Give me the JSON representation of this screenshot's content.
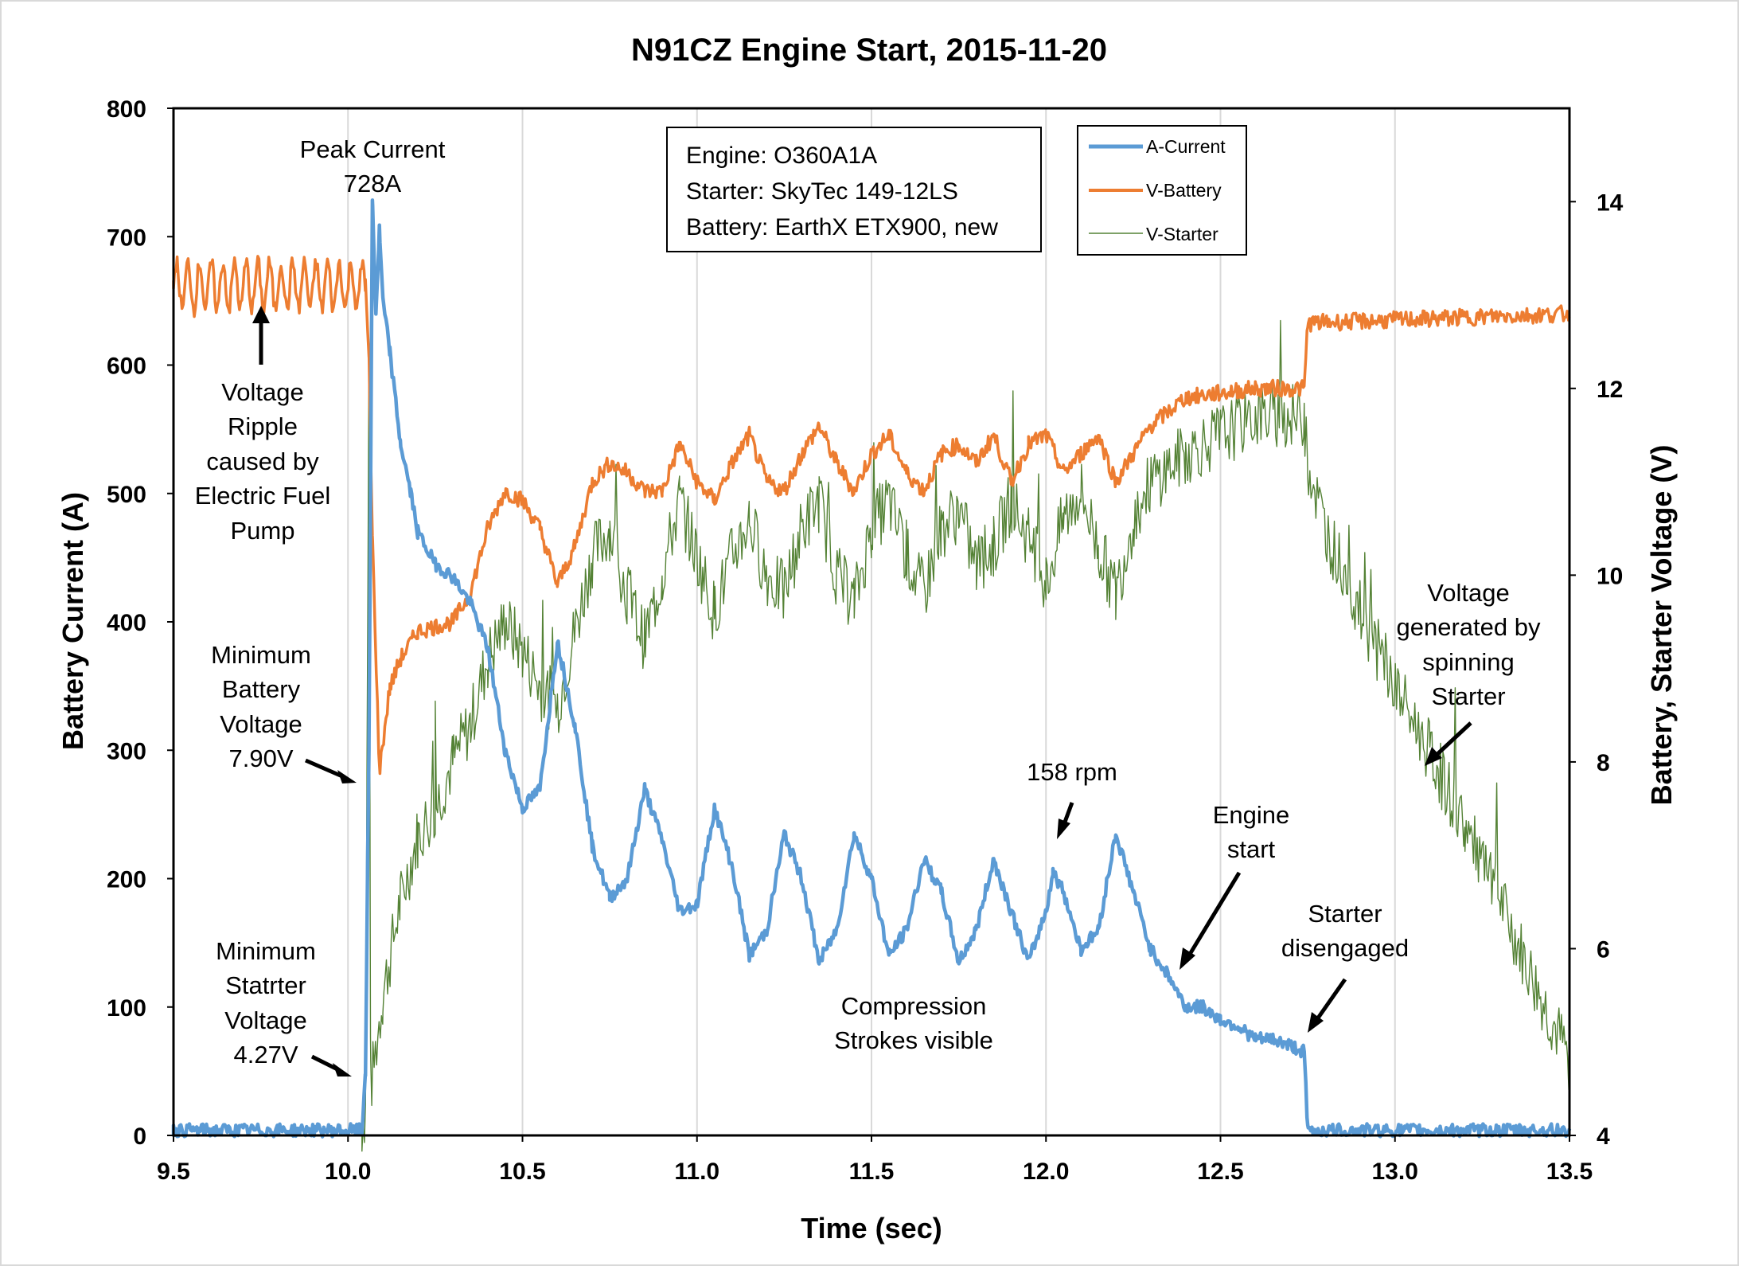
{
  "chart_data": {
    "type": "line",
    "title": "N91CZ Engine Start, 2015-11-20",
    "xlabel": "Time (sec)",
    "ylabel_left": "Battery Current (A)",
    "ylabel_right": "Battery, Starter Voltage (V)",
    "xlim": [
      9.5,
      13.5
    ],
    "ylim_left": [
      0,
      800
    ],
    "ylim_right": [
      4,
      15
    ],
    "grid": "vertical",
    "x_ticks": [
      "9.5",
      "10.0",
      "10.5",
      "11.0",
      "11.5",
      "12.0",
      "12.5",
      "13.0",
      "13.5"
    ],
    "y_left_ticks": [
      "0",
      "100",
      "200",
      "300",
      "400",
      "500",
      "600",
      "700",
      "800"
    ],
    "y_right_ticks": [
      "4",
      "6",
      "8",
      "10",
      "12",
      "14"
    ],
    "legend": {
      "position": "top-right",
      "entries": [
        "A-Current",
        "V-Battery",
        "V-Starter"
      ]
    },
    "info_box": [
      "Engine: O360A1A",
      "Starter: SkyTec 149-12LS",
      "Battery: EarthX ETX900, new"
    ],
    "annotations": {
      "peak": [
        "Peak Current",
        "728A"
      ],
      "ripple": [
        "Voltage",
        "Ripple",
        "caused by",
        "Electric Fuel",
        "Pump"
      ],
      "minbatt": [
        "Minimum",
        "Battery",
        "Voltage",
        "7.90V"
      ],
      "minstarter": [
        "Minimum",
        "Statrter",
        "Voltage",
        "4.27V"
      ],
      "rpm": [
        "158 rpm"
      ],
      "engine": [
        "Engine",
        "start"
      ],
      "compression": [
        "Compression",
        "Strokes visible"
      ],
      "disengaged": [
        "Starter",
        "disengaged"
      ],
      "generated": [
        "Voltage",
        "generated by",
        "spinning",
        "Starter"
      ]
    },
    "series": [
      {
        "name": "A-Current",
        "axis": "left",
        "color": "#5B9BD5",
        "points": [
          [
            9.5,
            4
          ],
          [
            10.04,
            4
          ],
          [
            10.05,
            50
          ],
          [
            10.06,
            300
          ],
          [
            10.07,
            728
          ],
          [
            10.08,
            640
          ],
          [
            10.09,
            705
          ],
          [
            10.1,
            650
          ],
          [
            10.12,
            610
          ],
          [
            10.15,
            540
          ],
          [
            10.18,
            500
          ],
          [
            10.2,
            470
          ],
          [
            10.25,
            445
          ],
          [
            10.3,
            435
          ],
          [
            10.35,
            415
          ],
          [
            10.4,
            380
          ],
          [
            10.45,
            300
          ],
          [
            10.5,
            255
          ],
          [
            10.55,
            270
          ],
          [
            10.6,
            385
          ],
          [
            10.65,
            320
          ],
          [
            10.7,
            225
          ],
          [
            10.75,
            185
          ],
          [
            10.8,
            200
          ],
          [
            10.85,
            270
          ],
          [
            10.9,
            230
          ],
          [
            10.95,
            175
          ],
          [
            11.0,
            180
          ],
          [
            11.05,
            255
          ],
          [
            11.1,
            210
          ],
          [
            11.15,
            140
          ],
          [
            11.2,
            160
          ],
          [
            11.25,
            235
          ],
          [
            11.3,
            200
          ],
          [
            11.35,
            135
          ],
          [
            11.4,
            160
          ],
          [
            11.45,
            235
          ],
          [
            11.5,
            200
          ],
          [
            11.55,
            140
          ],
          [
            11.6,
            160
          ],
          [
            11.65,
            215
          ],
          [
            11.7,
            190
          ],
          [
            11.75,
            135
          ],
          [
            11.8,
            160
          ],
          [
            11.85,
            215
          ],
          [
            11.9,
            175
          ],
          [
            11.95,
            135
          ],
          [
            12.0,
            175
          ],
          [
            12.02,
            205
          ],
          [
            12.05,
            190
          ],
          [
            12.1,
            145
          ],
          [
            12.15,
            160
          ],
          [
            12.2,
            235
          ],
          [
            12.25,
            190
          ],
          [
            12.3,
            145
          ],
          [
            12.35,
            125
          ],
          [
            12.4,
            100
          ],
          [
            12.45,
            100
          ],
          [
            12.5,
            90
          ],
          [
            12.55,
            85
          ],
          [
            12.6,
            75
          ],
          [
            12.65,
            75
          ],
          [
            12.7,
            70
          ],
          [
            12.74,
            65
          ],
          [
            12.75,
            4
          ],
          [
            13.5,
            4
          ]
        ]
      },
      {
        "name": "V-Battery",
        "axis": "right",
        "color": "#ED7D31",
        "points": [
          [
            9.5,
            13.1
          ],
          [
            10.05,
            13.1
          ],
          [
            10.06,
            12.3
          ],
          [
            10.07,
            10.4
          ],
          [
            10.09,
            7.9
          ],
          [
            10.12,
            8.8
          ],
          [
            10.15,
            9.1
          ],
          [
            10.2,
            9.4
          ],
          [
            10.3,
            9.5
          ],
          [
            10.35,
            9.8
          ],
          [
            10.4,
            10.5
          ],
          [
            10.45,
            10.9
          ],
          [
            10.5,
            10.8
          ],
          [
            10.55,
            10.5
          ],
          [
            10.6,
            9.9
          ],
          [
            10.65,
            10.3
          ],
          [
            10.7,
            11.0
          ],
          [
            10.75,
            11.2
          ],
          [
            10.8,
            11.1
          ],
          [
            10.85,
            10.9
          ],
          [
            10.9,
            10.9
          ],
          [
            10.95,
            11.4
          ],
          [
            11.0,
            11.0
          ],
          [
            11.05,
            10.8
          ],
          [
            11.1,
            11.2
          ],
          [
            11.15,
            11.5
          ],
          [
            11.2,
            11.0
          ],
          [
            11.25,
            10.9
          ],
          [
            11.3,
            11.3
          ],
          [
            11.35,
            11.6
          ],
          [
            11.4,
            11.2
          ],
          [
            11.45,
            10.9
          ],
          [
            11.5,
            11.3
          ],
          [
            11.55,
            11.5
          ],
          [
            11.6,
            11.1
          ],
          [
            11.65,
            10.9
          ],
          [
            11.7,
            11.3
          ],
          [
            11.75,
            11.4
          ],
          [
            11.8,
            11.2
          ],
          [
            11.85,
            11.5
          ],
          [
            11.9,
            11.0
          ],
          [
            11.95,
            11.4
          ],
          [
            12.0,
            11.5
          ],
          [
            12.05,
            11.1
          ],
          [
            12.1,
            11.3
          ],
          [
            12.15,
            11.5
          ],
          [
            12.2,
            11.0
          ],
          [
            12.25,
            11.3
          ],
          [
            12.3,
            11.6
          ],
          [
            12.4,
            11.9
          ],
          [
            12.5,
            11.95
          ],
          [
            12.6,
            12.0
          ],
          [
            12.74,
            12.0
          ],
          [
            12.75,
            12.7
          ],
          [
            13.5,
            12.8
          ]
        ]
      },
      {
        "name": "V-Starter",
        "axis": "right",
        "color": "#548235",
        "points": [
          [
            10.04,
            4.1
          ],
          [
            10.05,
            4.27
          ],
          [
            10.06,
            12.3
          ],
          [
            10.065,
            4.5
          ],
          [
            10.1,
            5.5
          ],
          [
            10.15,
            6.5
          ],
          [
            10.2,
            7.2
          ],
          [
            10.25,
            7.5
          ],
          [
            10.3,
            8.0
          ],
          [
            10.35,
            8.4
          ],
          [
            10.4,
            9.1
          ],
          [
            10.45,
            9.5
          ],
          [
            10.5,
            9.2
          ],
          [
            10.55,
            8.8
          ],
          [
            10.6,
            8.6
          ],
          [
            10.65,
            9.4
          ],
          [
            10.7,
            10.2
          ],
          [
            10.75,
            10.5
          ],
          [
            10.8,
            9.8
          ],
          [
            10.85,
            9.3
          ],
          [
            10.9,
            10.0
          ],
          [
            10.95,
            10.8
          ],
          [
            11.0,
            10.2
          ],
          [
            11.05,
            9.6
          ],
          [
            11.1,
            10.2
          ],
          [
            11.15,
            10.6
          ],
          [
            11.2,
            10.0
          ],
          [
            11.25,
            9.8
          ],
          [
            11.3,
            10.5
          ],
          [
            11.35,
            10.8
          ],
          [
            11.4,
            10.0
          ],
          [
            11.45,
            9.7
          ],
          [
            11.5,
            10.5
          ],
          [
            11.55,
            10.8
          ],
          [
            11.6,
            10.2
          ],
          [
            11.65,
            9.8
          ],
          [
            11.7,
            10.5
          ],
          [
            11.75,
            10.7
          ],
          [
            11.8,
            10.1
          ],
          [
            11.85,
            10.3
          ],
          [
            11.9,
            10.8
          ],
          [
            11.95,
            10.4
          ],
          [
            12.0,
            9.9
          ],
          [
            12.05,
            10.6
          ],
          [
            12.1,
            10.9
          ],
          [
            12.15,
            10.3
          ],
          [
            12.2,
            9.8
          ],
          [
            12.25,
            10.6
          ],
          [
            12.3,
            11.0
          ],
          [
            12.4,
            11.3
          ],
          [
            12.5,
            11.5
          ],
          [
            12.6,
            11.7
          ],
          [
            12.74,
            11.7
          ],
          [
            12.75,
            11.2
          ],
          [
            12.8,
            10.5
          ],
          [
            12.9,
            9.6
          ],
          [
            13.0,
            8.8
          ],
          [
            13.1,
            8.1
          ],
          [
            13.2,
            7.3
          ],
          [
            13.3,
            6.5
          ],
          [
            13.4,
            5.6
          ],
          [
            13.5,
            4.8
          ]
        ]
      }
    ]
  }
}
